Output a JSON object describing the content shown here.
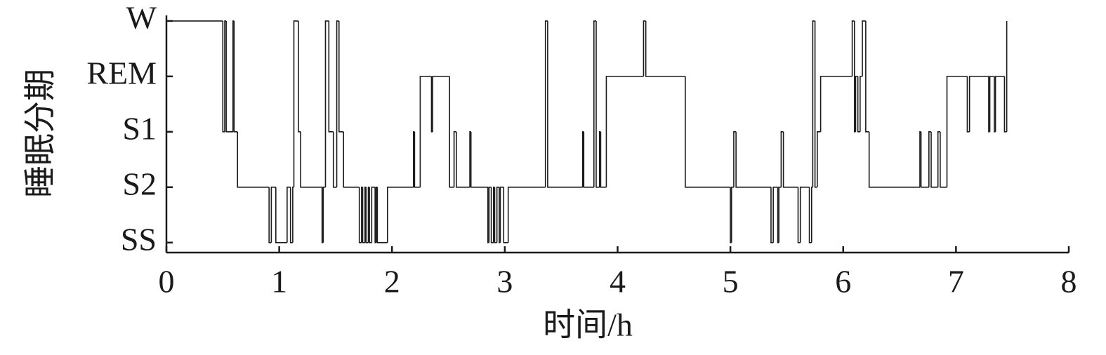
{
  "chart_data": {
    "type": "line",
    "step": "post",
    "color": "#1a1a1a",
    "ylabel": "睡眠分期",
    "xlabel": "时间/h",
    "xlim": [
      0,
      8
    ],
    "xticks": [
      0,
      1,
      2,
      3,
      4,
      5,
      6,
      7,
      8
    ],
    "ylim": [
      -0.18,
      4.1
    ],
    "yticks": [
      {
        "value": 0,
        "label": "SS"
      },
      {
        "value": 1,
        "label": "S2"
      },
      {
        "value": 2,
        "label": "S1"
      },
      {
        "value": 3,
        "label": "REM"
      },
      {
        "value": 4,
        "label": "W"
      }
    ],
    "x": [
      0,
      0.5,
      0.517,
      0.53,
      0.59,
      0.6,
      0.63,
      0.91,
      0.93,
      0.97,
      1.07,
      1.1,
      1.12,
      1.13,
      1.17,
      1.19,
      1.38,
      1.39,
      1.41,
      1.44,
      1.48,
      1.51,
      1.53,
      1.57,
      1.71,
      1.73,
      1.74,
      1.76,
      1.77,
      1.79,
      1.8,
      1.82,
      1.85,
      1.86,
      1.87,
      1.96,
      2.19,
      2.2,
      2.25,
      2.35,
      2.36,
      2.51,
      2.55,
      2.57,
      2.69,
      2.7,
      2.85,
      2.86,
      2.88,
      2.9,
      2.91,
      2.93,
      2.95,
      2.96,
      2.99,
      3.03,
      3.36,
      3.38,
      3.69,
      3.7,
      3.79,
      3.81,
      3.84,
      3.85,
      3.9,
      4.23,
      4.25,
      4.6,
      5.0,
      5.01,
      5.03,
      5.05,
      5.36,
      5.38,
      5.42,
      5.43,
      5.45,
      5.47,
      5.6,
      5.62,
      5.7,
      5.72,
      5.73,
      5.75,
      5.77,
      5.8,
      6.08,
      6.1,
      6.11,
      6.13,
      6.15,
      6.17,
      6.2,
      6.23,
      6.68,
      6.69,
      6.76,
      6.78,
      6.84,
      6.86,
      6.92,
      7.1,
      7.12,
      7.29,
      7.3,
      7.34,
      7.35,
      7.43,
      7.45
    ],
    "values": [
      4,
      2,
      4,
      2,
      4,
      2,
      1,
      0,
      1,
      0,
      1,
      0,
      1,
      4,
      2,
      1,
      0,
      1,
      4,
      2,
      1,
      4,
      2,
      1,
      0,
      1,
      0,
      1,
      0,
      1,
      0,
      1,
      0,
      1,
      0,
      1,
      2,
      1,
      3,
      2,
      3,
      1,
      2,
      1,
      2,
      1,
      0,
      1,
      0,
      1,
      0,
      1,
      0,
      1,
      0,
      1,
      4,
      1,
      2,
      1,
      4,
      1,
      2,
      1,
      3,
      4,
      3,
      1,
      0,
      1,
      2,
      1,
      0,
      1,
      0,
      1,
      2,
      1,
      0,
      1,
      0,
      1,
      4,
      1,
      2,
      3,
      4,
      2,
      3,
      2,
      3,
      4,
      2,
      1,
      2,
      1,
      2,
      1,
      2,
      1,
      3,
      2,
      3,
      2,
      3,
      2,
      3,
      2,
      4
    ]
  }
}
